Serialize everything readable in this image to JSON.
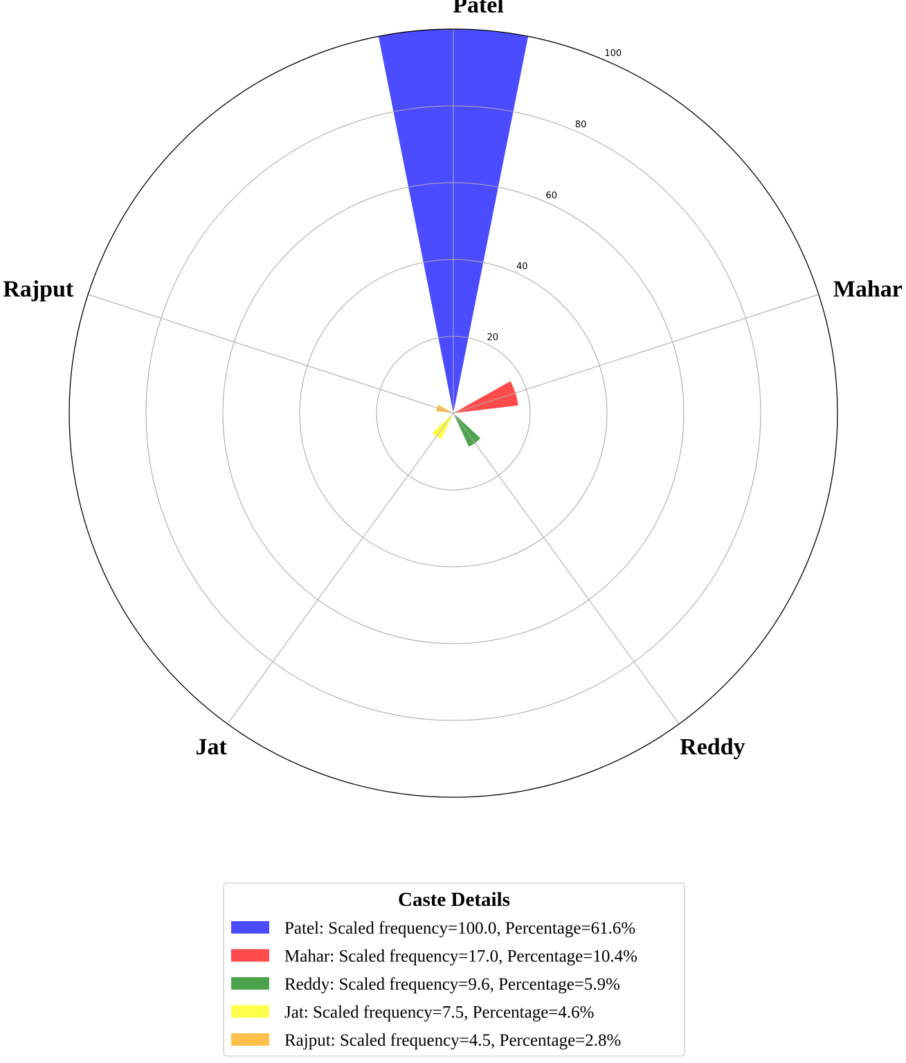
{
  "chart_data": {
    "type": "polar-bar",
    "categories": [
      "Patel",
      "Mahar",
      "Reddy",
      "Jat",
      "Rajput"
    ],
    "values": [
      100.0,
      17.0,
      9.6,
      7.5,
      4.5
    ],
    "percentages": [
      61.6,
      10.4,
      5.9,
      4.6,
      2.8
    ],
    "colors": [
      "#4b4bff",
      "#ff4b4b",
      "#4ba44b",
      "#ffff4b",
      "#ffc04b"
    ],
    "rlim": [
      0,
      100
    ],
    "r_ticks": [
      "20",
      "40",
      "60",
      "80",
      "100"
    ],
    "grid": true,
    "legend": {
      "title": "Caste Details",
      "placement": "bottom-center",
      "entries": [
        "Patel: Scaled frequency=100.0, Percentage=61.6%",
        "Mahar: Scaled frequency=17.0, Percentage=10.4%",
        "Reddy: Scaled frequency=9.6, Percentage=5.9%",
        "Jat: Scaled frequency=7.5, Percentage=4.6%",
        "Rajput: Scaled frequency=4.5, Percentage=2.8%"
      ]
    }
  }
}
